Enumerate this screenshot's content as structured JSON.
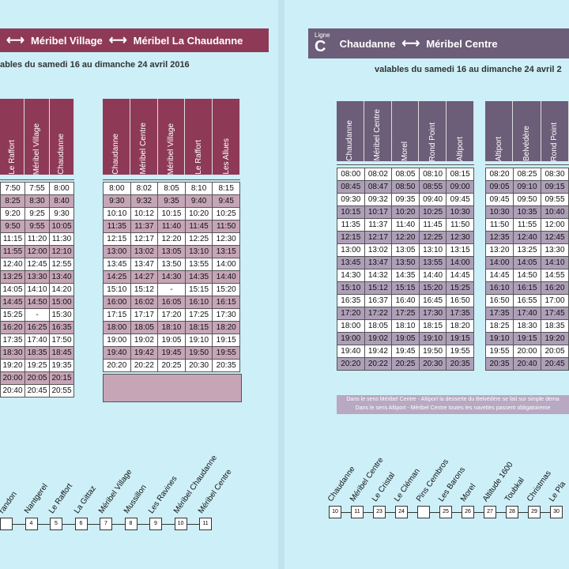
{
  "left": {
    "banner": {
      "from": "Méribel Village",
      "to": "Méribel La Chaudanne"
    },
    "validity": "ables du samedi 16 au dimanche 24 avril 2016",
    "table1": {
      "headers": [
        "Le Raffort",
        "Méribel Village",
        "Chaudanne"
      ],
      "rows": [
        [
          "7:50",
          "7:55",
          "8:00"
        ],
        [
          "8:25",
          "8:30",
          "8:40"
        ],
        [
          "9:20",
          "9:25",
          "9:30"
        ],
        [
          "9:50",
          "9:55",
          "10:05"
        ],
        [
          "11:15",
          "11:20",
          "11:30"
        ],
        [
          "11:55",
          "12:00",
          "12:10"
        ],
        [
          "12:40",
          "12:45",
          "12:55"
        ],
        [
          "13:25",
          "13:30",
          "13:40"
        ],
        [
          "14:05",
          "14:10",
          "14:20"
        ],
        [
          "14:45",
          "14:50",
          "15:00"
        ],
        [
          "15:25",
          "-",
          "15:30"
        ],
        [
          "16:20",
          "16:25",
          "16:35"
        ],
        [
          "17:35",
          "17:40",
          "17:50"
        ],
        [
          "18:30",
          "18:35",
          "18:45"
        ],
        [
          "19:20",
          "19:25",
          "19:35"
        ],
        [
          "20:00",
          "20:05",
          "20:15"
        ],
        [
          "20:40",
          "20:45",
          "20:55"
        ]
      ]
    },
    "table2": {
      "headers": [
        "Chaudanne",
        "Méribel Centre",
        "Méribel Village",
        "Le Raffort",
        "Les Allues"
      ],
      "rows": [
        [
          "8:00",
          "8:02",
          "8:05",
          "8:10",
          "8:15"
        ],
        [
          "9:30",
          "9:32",
          "9:35",
          "9:40",
          "9:45"
        ],
        [
          "10:10",
          "10:12",
          "10:15",
          "10:20",
          "10:25"
        ],
        [
          "11:35",
          "11:37",
          "11:40",
          "11:45",
          "11:50"
        ],
        [
          "12:15",
          "12:17",
          "12:20",
          "12:25",
          "12:30"
        ],
        [
          "13:00",
          "13:02",
          "13:05",
          "13:10",
          "13:15"
        ],
        [
          "13:45",
          "13:47",
          "13:50",
          "13:55",
          "14:00"
        ],
        [
          "14:25",
          "14:27",
          "14:30",
          "14:35",
          "14:40"
        ],
        [
          "15:10",
          "15:12",
          "-",
          "15:15",
          "15:20"
        ],
        [
          "16:00",
          "16:02",
          "16:05",
          "16:10",
          "16:15"
        ],
        [
          "17:15",
          "17:17",
          "17:20",
          "17:25",
          "17:30"
        ],
        [
          "18:00",
          "18:05",
          "18:10",
          "18:15",
          "18:20"
        ],
        [
          "19:00",
          "19:02",
          "19:05",
          "19:10",
          "19:15"
        ],
        [
          "19:40",
          "19:42",
          "19:45",
          "19:50",
          "19:55"
        ],
        [
          "20:20",
          "20:22",
          "20:25",
          "20:30",
          "20:35"
        ]
      ]
    },
    "stops": [
      {
        "name": "randon",
        "num": ""
      },
      {
        "name": "Nantgerel",
        "num": "4"
      },
      {
        "name": "Le Raffort",
        "num": "5"
      },
      {
        "name": "La Gittaz",
        "num": "6"
      },
      {
        "name": "Méribel Village",
        "num": "7"
      },
      {
        "name": "Mussillon",
        "num": "8"
      },
      {
        "name": "Les Ravines",
        "num": "9"
      },
      {
        "name": "Méribel Chaudanne",
        "num": "10"
      },
      {
        "name": "Méribel Centre",
        "num": "11"
      }
    ]
  },
  "right": {
    "banner": {
      "ligne_label": "Ligne",
      "ligne_code": "C",
      "from": "Chaudanne",
      "to": "Méribel Centre"
    },
    "validity": "valables du samedi 16 au dimanche 24 avril 2",
    "table1": {
      "headers": [
        "Chaudanne",
        "Méribel Centre",
        "Morel",
        "Rond Point",
        "Altiport"
      ],
      "rows": [
        [
          "08:00",
          "08:02",
          "08:05",
          "08:10",
          "08:15"
        ],
        [
          "08:45",
          "08:47",
          "08:50",
          "08:55",
          "09:00"
        ],
        [
          "09:30",
          "09:32",
          "09:35",
          "09:40",
          "09:45"
        ],
        [
          "10:15",
          "10:17",
          "10:20",
          "10:25",
          "10:30"
        ],
        [
          "11:35",
          "11:37",
          "11:40",
          "11:45",
          "11:50"
        ],
        [
          "12:15",
          "12:17",
          "12:20",
          "12:25",
          "12:30"
        ],
        [
          "13:00",
          "13:02",
          "13:05",
          "13:10",
          "13:15"
        ],
        [
          "13:45",
          "13:47",
          "13:50",
          "13:55",
          "14:00"
        ],
        [
          "14:30",
          "14:32",
          "14:35",
          "14:40",
          "14:45"
        ],
        [
          "15:10",
          "15:12",
          "15:15",
          "15:20",
          "15:25"
        ],
        [
          "16:35",
          "16:37",
          "16:40",
          "16:45",
          "16:50"
        ],
        [
          "17:20",
          "17:22",
          "17:25",
          "17:30",
          "17:35"
        ],
        [
          "18:00",
          "18:05",
          "18:10",
          "18:15",
          "18:20"
        ],
        [
          "19:00",
          "19:02",
          "19:05",
          "19:10",
          "19:15"
        ],
        [
          "19:40",
          "19:42",
          "19:45",
          "19:50",
          "19:55"
        ],
        [
          "20:20",
          "20:22",
          "20:25",
          "20:30",
          "20:35"
        ]
      ]
    },
    "table2": {
      "headers": [
        "Altiport",
        "Belvédère",
        "Rond Point"
      ],
      "rows": [
        [
          "08:20",
          "08:25",
          "08:30"
        ],
        [
          "09:05",
          "09:10",
          "09:15"
        ],
        [
          "09:45",
          "09:50",
          "09:55"
        ],
        [
          "10:30",
          "10:35",
          "10:40"
        ],
        [
          "11:50",
          "11:55",
          "12:00"
        ],
        [
          "12:35",
          "12:40",
          "12:45"
        ],
        [
          "13:20",
          "13:25",
          "13:30"
        ],
        [
          "14:00",
          "14:05",
          "14:10"
        ],
        [
          "14:45",
          "14:50",
          "14:55"
        ],
        [
          "16:10",
          "16:15",
          "16:20"
        ],
        [
          "16:50",
          "16:55",
          "17:00"
        ],
        [
          "17:35",
          "17:40",
          "17:45"
        ],
        [
          "18:25",
          "18:30",
          "18:35"
        ],
        [
          "19:10",
          "19:15",
          "19:20"
        ],
        [
          "19:55",
          "20:00",
          "20:05"
        ],
        [
          "20:35",
          "20:40",
          "20:45"
        ]
      ]
    },
    "note": [
      "Dans le sens Méribel Centre - Altiport la desserte du Belvédère se fait sur simple dema",
      "Dans le sens Altiport - Méribel Centre toutes les navettes passent obligatoireme"
    ],
    "stops": [
      {
        "name": "Chaudanne",
        "num": "10"
      },
      {
        "name": "Méribel Centre",
        "num": "11"
      },
      {
        "name": "Le Cristal",
        "num": "23"
      },
      {
        "name": "Le Cléman",
        "num": "24"
      },
      {
        "name": "Pins Cembros",
        "num": ""
      },
      {
        "name": "Les Barons",
        "num": "25"
      },
      {
        "name": "Morel",
        "num": "26"
      },
      {
        "name": "Altitude 1600",
        "num": "27"
      },
      {
        "name": "Toubkal",
        "num": "28"
      },
      {
        "name": "Christmas",
        "num": "29"
      },
      {
        "name": "Le Pla",
        "num": "30"
      }
    ]
  }
}
